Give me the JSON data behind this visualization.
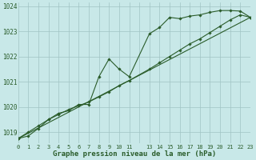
{
  "title": "Graphe pression niveau de la mer (hPa)",
  "bg_color": "#c8e8e8",
  "grid_color": "#a0c4c4",
  "line_color": "#2a5c2a",
  "xlim": [
    0,
    23
  ],
  "ylim": [
    1018.55,
    1024.15
  ],
  "yticks": [
    1019,
    1020,
    1021,
    1022,
    1023,
    1024
  ],
  "line1_x": [
    0,
    1,
    2,
    3,
    4,
    5,
    6,
    7,
    8,
    9,
    10,
    11,
    13,
    14,
    15,
    16,
    17,
    18,
    19,
    20,
    21,
    22,
    23
  ],
  "line1_y": [
    1018.75,
    1018.85,
    1019.15,
    1019.5,
    1019.75,
    1019.85,
    1020.1,
    1020.1,
    1021.2,
    1021.9,
    1021.5,
    1021.2,
    1022.9,
    1023.15,
    1023.55,
    1023.5,
    1023.6,
    1023.65,
    1023.75,
    1023.82,
    1023.82,
    1023.8,
    1023.55
  ],
  "line2_x": [
    0,
    1,
    2,
    3,
    4,
    5,
    6,
    7,
    8,
    9,
    10,
    11,
    13,
    14,
    15,
    16,
    17,
    18,
    19,
    20,
    21,
    22,
    23
  ],
  "line2_y": [
    1018.75,
    1019.0,
    1019.25,
    1019.5,
    1019.7,
    1019.9,
    1020.05,
    1020.2,
    1020.4,
    1020.6,
    1020.85,
    1021.05,
    1021.5,
    1021.75,
    1022.0,
    1022.25,
    1022.5,
    1022.7,
    1022.95,
    1023.2,
    1023.45,
    1023.65,
    1023.55
  ],
  "line3_x": [
    0,
    23
  ],
  "line3_y": [
    1018.75,
    1023.55
  ],
  "xtick_pos": [
    0,
    1,
    2,
    3,
    4,
    5,
    6,
    7,
    8,
    9,
    10,
    11,
    12,
    13,
    14,
    15,
    16,
    17,
    18,
    19,
    20,
    21,
    22,
    23
  ],
  "xtick_labels": [
    "0",
    "1",
    "2",
    "3",
    "4",
    "5",
    "6",
    "7",
    "8",
    "9",
    "10",
    "11",
    "",
    "13",
    "14",
    "15",
    "16",
    "17",
    "18",
    "19",
    "20",
    "21",
    "22",
    "23"
  ]
}
